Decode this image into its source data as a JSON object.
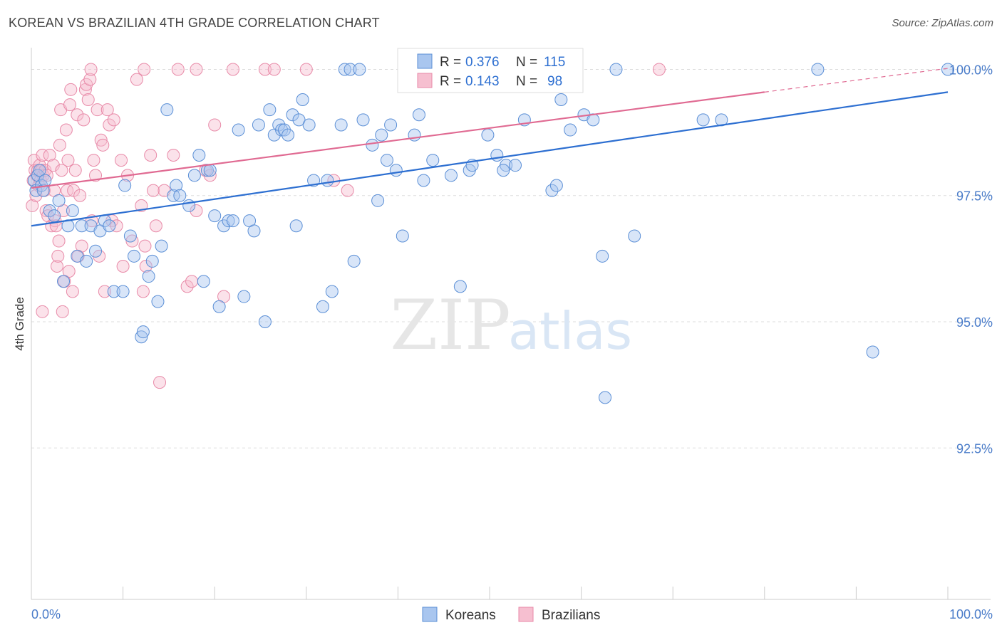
{
  "title": "KOREAN VS BRAZILIAN 4TH GRADE CORRELATION CHART",
  "source": "Source: ZipAtlas.com",
  "watermark": {
    "zip": "ZIP",
    "atlas": "atlas"
  },
  "colors": {
    "korean_fill": "#a9c6ef",
    "korean_stroke": "#5b8fd6",
    "korean_line": "#2d6fd1",
    "brazil_fill": "#f6bfd0",
    "brazil_stroke": "#e88aa8",
    "brazil_line": "#e06a92",
    "tick_text": "#4a7cc9",
    "grid": "#dddddd"
  },
  "legend": {
    "rows": [
      {
        "r_label": "R = ",
        "r_value": "0.376",
        "n_label": "N = ",
        "n_value": "115"
      },
      {
        "r_label": "R = ",
        "r_value": "0.143",
        "n_label": "N = ",
        "n_value": "98"
      }
    ]
  },
  "bottom_legend": [
    "Koreans",
    "Brazilians"
  ],
  "chart_data": {
    "type": "scatter",
    "title": "KOREAN VS BRAZILIAN 4TH GRADE CORRELATION CHART",
    "xlabel": "",
    "ylabel": "4th Grade",
    "xlim": [
      0,
      100
    ],
    "ylim": [
      89.5,
      100.5
    ],
    "x_tick_labels": [
      "0.0%",
      "100.0%"
    ],
    "y_ticks": [
      {
        "value": 100.0,
        "label": "100.0%"
      },
      {
        "value": 97.5,
        "label": "97.5%"
      },
      {
        "value": 95.0,
        "label": "95.0%"
      },
      {
        "value": 92.5,
        "label": "92.5%"
      }
    ],
    "grid": true,
    "legend_position": "top-center",
    "series": [
      {
        "name": "Koreans",
        "r": 0.376,
        "n": 115,
        "trend": {
          "x": [
            0,
            100
          ],
          "y": [
            96.9,
            99.55
          ]
        },
        "points": [
          [
            0.3,
            97.8
          ],
          [
            0.5,
            97.6
          ],
          [
            0.7,
            97.9
          ],
          [
            0.9,
            98.0
          ],
          [
            1.1,
            97.7
          ],
          [
            1.3,
            97.6
          ],
          [
            1.5,
            97.8
          ],
          [
            2.0,
            97.2
          ],
          [
            2.5,
            97.1
          ],
          [
            3.0,
            97.4
          ],
          [
            3.5,
            95.8
          ],
          [
            4.0,
            96.9
          ],
          [
            4.5,
            97.2
          ],
          [
            5.0,
            96.3
          ],
          [
            5.5,
            96.9
          ],
          [
            6.0,
            96.2
          ],
          [
            6.5,
            96.9
          ],
          [
            7.0,
            96.4
          ],
          [
            7.5,
            96.8
          ],
          [
            8.0,
            97.0
          ],
          [
            8.5,
            96.9
          ],
          [
            9.0,
            95.6
          ],
          [
            10.0,
            95.6
          ],
          [
            10.2,
            97.7
          ],
          [
            10.8,
            96.7
          ],
          [
            11.2,
            96.3
          ],
          [
            12.0,
            94.7
          ],
          [
            12.2,
            94.8
          ],
          [
            12.8,
            95.9
          ],
          [
            13.2,
            96.2
          ],
          [
            13.8,
            95.4
          ],
          [
            14.2,
            96.5
          ],
          [
            14.8,
            99.2
          ],
          [
            15.5,
            97.5
          ],
          [
            15.8,
            97.7
          ],
          [
            16.2,
            97.5
          ],
          [
            17.2,
            97.3
          ],
          [
            17.8,
            97.9
          ],
          [
            18.3,
            98.3
          ],
          [
            18.8,
            95.8
          ],
          [
            19.2,
            98.0
          ],
          [
            19.5,
            98.0
          ],
          [
            20.0,
            97.1
          ],
          [
            20.5,
            95.3
          ],
          [
            21.0,
            96.9
          ],
          [
            21.5,
            97.0
          ],
          [
            22.0,
            97.0
          ],
          [
            22.6,
            98.8
          ],
          [
            23.2,
            95.5
          ],
          [
            23.8,
            97.0
          ],
          [
            24.3,
            96.8
          ],
          [
            24.8,
            98.9
          ],
          [
            25.5,
            95.0
          ],
          [
            26.0,
            99.2
          ],
          [
            26.5,
            98.7
          ],
          [
            27.0,
            98.9
          ],
          [
            27.3,
            98.8
          ],
          [
            27.6,
            98.8
          ],
          [
            28.0,
            98.7
          ],
          [
            28.5,
            99.1
          ],
          [
            28.9,
            96.9
          ],
          [
            29.6,
            99.4
          ],
          [
            29.2,
            99.0
          ],
          [
            30.3,
            98.9
          ],
          [
            30.8,
            97.8
          ],
          [
            31.8,
            95.3
          ],
          [
            32.3,
            97.8
          ],
          [
            32.8,
            95.6
          ],
          [
            33.8,
            98.9
          ],
          [
            34.2,
            100.0
          ],
          [
            34.8,
            100.0
          ],
          [
            35.2,
            96.2
          ],
          [
            35.8,
            100.0
          ],
          [
            36.2,
            99.0
          ],
          [
            37.2,
            98.5
          ],
          [
            37.8,
            97.4
          ],
          [
            38.2,
            98.7
          ],
          [
            38.8,
            98.2
          ],
          [
            39.2,
            98.9
          ],
          [
            39.8,
            98.0
          ],
          [
            40.5,
            96.7
          ],
          [
            41.0,
            100.0
          ],
          [
            41.2,
            100.0
          ],
          [
            41.8,
            98.7
          ],
          [
            42.3,
            99.1
          ],
          [
            42.8,
            97.8
          ],
          [
            43.8,
            98.2
          ],
          [
            45.8,
            97.9
          ],
          [
            46.8,
            95.7
          ],
          [
            47.3,
            100.0
          ],
          [
            47.8,
            98.0
          ],
          [
            48.1,
            98.1
          ],
          [
            49.8,
            98.7
          ],
          [
            50.8,
            98.3
          ],
          [
            51.8,
            98.1
          ],
          [
            51.5,
            98.0
          ],
          [
            52.8,
            98.1
          ],
          [
            53.8,
            99.0
          ],
          [
            55.0,
            100.0
          ],
          [
            56.8,
            97.6
          ],
          [
            57.3,
            97.7
          ],
          [
            57.8,
            99.4
          ],
          [
            58.8,
            98.8
          ],
          [
            60.3,
            99.1
          ],
          [
            61.3,
            99.0
          ],
          [
            62.3,
            96.3
          ],
          [
            62.6,
            93.5
          ],
          [
            63.8,
            100.0
          ],
          [
            65.8,
            96.7
          ],
          [
            73.3,
            99.0
          ],
          [
            75.3,
            99.0
          ],
          [
            85.8,
            100.0
          ],
          [
            91.8,
            94.4
          ],
          [
            100.0,
            100.0
          ]
        ]
      },
      {
        "name": "Brazilians",
        "r": 0.143,
        "n": 98,
        "trend": {
          "x": [
            0,
            80
          ],
          "y": [
            97.65,
            99.55
          ]
        },
        "trend_dashed_extension": {
          "x": [
            80,
            100
          ],
          "y": [
            99.55,
            100.02
          ]
        },
        "points": [
          [
            0.1,
            97.3
          ],
          [
            0.2,
            97.8
          ],
          [
            0.3,
            98.2
          ],
          [
            0.4,
            98.0
          ],
          [
            0.5,
            97.5
          ],
          [
            0.6,
            97.9
          ],
          [
            0.7,
            98.0
          ],
          [
            0.8,
            97.7
          ],
          [
            0.9,
            98.1
          ],
          [
            1.0,
            97.8
          ],
          [
            1.1,
            98.0
          ],
          [
            1.2,
            98.3
          ],
          [
            1.3,
            97.9
          ],
          [
            1.4,
            97.6
          ],
          [
            1.5,
            98.0
          ],
          [
            1.6,
            97.2
          ],
          [
            1.7,
            97.9
          ],
          [
            1.8,
            97.1
          ],
          [
            2.0,
            98.3
          ],
          [
            2.2,
            96.9
          ],
          [
            2.4,
            98.1
          ],
          [
            2.5,
            97.6
          ],
          [
            2.6,
            97.0
          ],
          [
            2.7,
            96.9
          ],
          [
            2.8,
            96.1
          ],
          [
            2.9,
            96.3
          ],
          [
            3.0,
            96.6
          ],
          [
            3.1,
            98.5
          ],
          [
            3.2,
            99.2
          ],
          [
            3.3,
            98.0
          ],
          [
            3.5,
            97.2
          ],
          [
            3.6,
            95.8
          ],
          [
            3.8,
            98.8
          ],
          [
            3.9,
            97.6
          ],
          [
            4.0,
            98.2
          ],
          [
            4.1,
            96.0
          ],
          [
            4.2,
            99.3
          ],
          [
            4.3,
            99.6
          ],
          [
            4.5,
            95.6
          ],
          [
            4.6,
            97.6
          ],
          [
            4.8,
            98.0
          ],
          [
            5.0,
            99.1
          ],
          [
            5.1,
            96.3
          ],
          [
            5.3,
            97.5
          ],
          [
            5.5,
            96.5
          ],
          [
            5.7,
            99.0
          ],
          [
            5.9,
            99.6
          ],
          [
            6.0,
            99.7
          ],
          [
            6.2,
            99.4
          ],
          [
            6.4,
            99.8
          ],
          [
            6.6,
            97.0
          ],
          [
            6.8,
            98.2
          ],
          [
            7.0,
            97.9
          ],
          [
            7.2,
            99.2
          ],
          [
            7.4,
            96.3
          ],
          [
            7.6,
            98.6
          ],
          [
            7.8,
            98.5
          ],
          [
            8.0,
            95.6
          ],
          [
            8.3,
            99.2
          ],
          [
            8.5,
            98.9
          ],
          [
            8.8,
            97.0
          ],
          [
            9.0,
            99.0
          ],
          [
            9.3,
            96.9
          ],
          [
            9.8,
            98.2
          ],
          [
            10.0,
            96.1
          ],
          [
            10.5,
            97.9
          ],
          [
            11.0,
            96.6
          ],
          [
            11.5,
            99.8
          ],
          [
            12.0,
            97.3
          ],
          [
            12.2,
            95.6
          ],
          [
            12.4,
            96.5
          ],
          [
            12.5,
            96.1
          ],
          [
            13.0,
            98.3
          ],
          [
            13.3,
            97.6
          ],
          [
            13.6,
            96.9
          ],
          [
            14.0,
            93.8
          ],
          [
            14.5,
            97.6
          ],
          [
            15.5,
            98.3
          ],
          [
            16.0,
            100.0
          ],
          [
            17.0,
            95.7
          ],
          [
            17.5,
            95.8
          ],
          [
            18.0,
            97.2
          ],
          [
            19.0,
            98.0
          ],
          [
            19.5,
            97.9
          ],
          [
            20.0,
            98.9
          ],
          [
            21.0,
            95.5
          ],
          [
            22.0,
            100.0
          ],
          [
            25.5,
            100.0
          ],
          [
            26.5,
            100.0
          ],
          [
            30.0,
            100.0
          ],
          [
            33.0,
            97.8
          ],
          [
            34.5,
            97.6
          ],
          [
            1.2,
            95.2
          ],
          [
            3.4,
            95.2
          ],
          [
            6.5,
            100.0
          ],
          [
            12.3,
            100.0
          ],
          [
            18.0,
            100.0
          ],
          [
            68.5,
            100.0
          ]
        ]
      }
    ]
  }
}
